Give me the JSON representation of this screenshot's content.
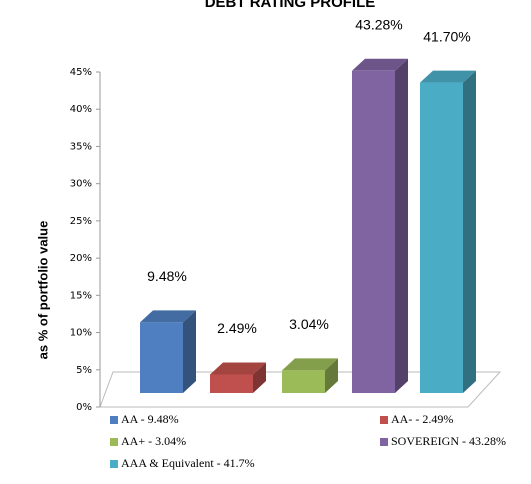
{
  "chart_data": {
    "type": "bar3d",
    "title": "DEBT RATING PROFILE",
    "y_label": "as % of portfolio value",
    "categories": [
      "AA - 9.48%",
      "AA- - 2.49%",
      "AA+ - 3.04%",
      "SOVEREIGN - 43.28%",
      "AAA & Equivalent - 41.7%"
    ],
    "values": [
      9.48,
      2.49,
      3.04,
      43.28,
      41.7
    ],
    "value_labels": [
      "9.48%",
      "2.49%",
      "3.04%",
      "43.28%",
      "41.70%"
    ],
    "colors": [
      "#4f7fc0",
      "#c0504d",
      "#9bbb59",
      "#8064a2",
      "#4bacc6"
    ],
    "ylim": [
      0,
      45
    ],
    "yticks": [
      {
        "value": 0,
        "label": "0%"
      },
      {
        "value": 5,
        "label": "5%"
      },
      {
        "value": 10,
        "label": "10%"
      },
      {
        "value": 15,
        "label": "15%"
      },
      {
        "value": 20,
        "label": "20%"
      },
      {
        "value": 25,
        "label": "25%"
      },
      {
        "value": 30,
        "label": "30%"
      },
      {
        "value": 35,
        "label": "35%"
      },
      {
        "value": 40,
        "label": "40%"
      },
      {
        "value": 45,
        "label": "45%"
      }
    ],
    "legend": "bottom"
  }
}
